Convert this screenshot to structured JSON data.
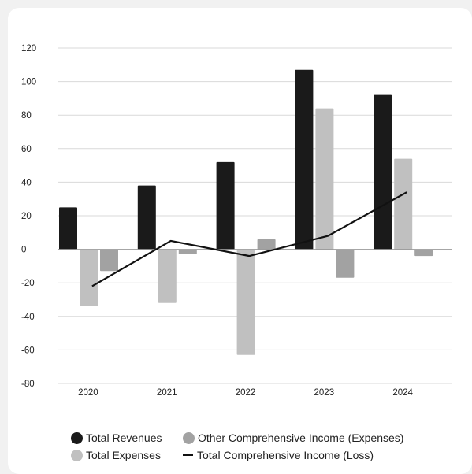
{
  "chart_data": {
    "type": "bar",
    "categories": [
      "2020",
      "2021",
      "2022",
      "2023",
      "2024"
    ],
    "ylim": [
      -80,
      120
    ],
    "yticks": [
      120,
      100,
      80,
      60,
      40,
      20,
      0,
      -20,
      -40,
      -60,
      -80
    ],
    "grid": true,
    "legend_position": "bottom",
    "series": [
      {
        "name": "Total Revenues",
        "kind": "bar",
        "color": "#1a1a1a",
        "values": [
          25,
          38,
          52,
          107,
          92
        ]
      },
      {
        "name": "Total Expenses",
        "kind": "bar",
        "color": "#c0c0c0",
        "values": [
          -34,
          -32,
          -63,
          84,
          54
        ]
      },
      {
        "name": "Other Comprehensive Income (Expenses)",
        "kind": "bar",
        "color": "#a2a2a2",
        "values": [
          -13,
          -3,
          6,
          -17,
          -4
        ]
      },
      {
        "name": "Total Comprehensive Income (Loss)",
        "kind": "line",
        "color": "#111111",
        "values": [
          -22,
          5,
          -4,
          8,
          34
        ]
      }
    ]
  }
}
